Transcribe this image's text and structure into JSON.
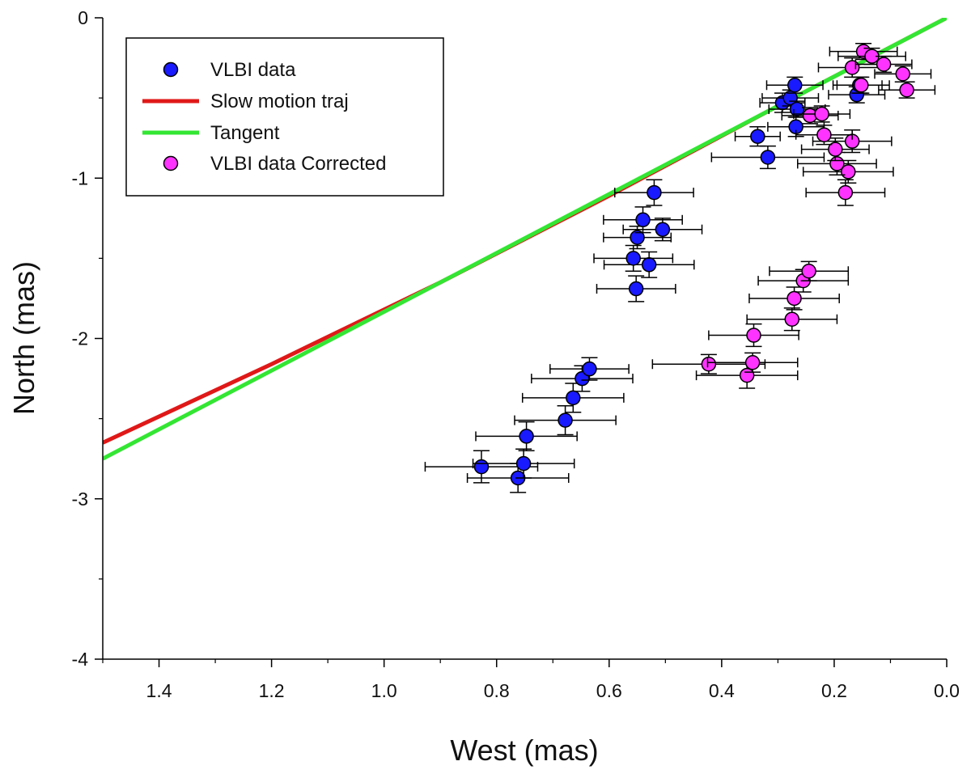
{
  "chart_data": {
    "type": "scatter",
    "xlabel": "West (mas)",
    "ylabel": "North (mas)",
    "x_reversed": true,
    "xlim": [
      0.0,
      1.5
    ],
    "ylim": [
      -4,
      0
    ],
    "x_ticks": [
      "1.4",
      "1.2",
      "1.0",
      "0.8",
      "0.6",
      "0.4",
      "0.2",
      "0.0"
    ],
    "y_ticks": [
      "0",
      "-1",
      "-2",
      "-3",
      "-4"
    ],
    "legend_position": "top-left",
    "series": [
      {
        "name": "VLBI data",
        "kind": "points",
        "color": "#1a1aff",
        "points": [
          {
            "x": 0.827,
            "y": -2.8,
            "xerr": 0.1,
            "yerr": 0.1
          },
          {
            "x": 0.762,
            "y": -2.87,
            "xerr": 0.09,
            "yerr": 0.09
          },
          {
            "x": 0.752,
            "y": -2.78,
            "xerr": 0.09,
            "yerr": 0.09
          },
          {
            "x": 0.747,
            "y": -2.61,
            "xerr": 0.09,
            "yerr": 0.09
          },
          {
            "x": 0.678,
            "y": -2.51,
            "xerr": 0.09,
            "yerr": 0.09
          },
          {
            "x": 0.664,
            "y": -2.37,
            "xerr": 0.09,
            "yerr": 0.09
          },
          {
            "x": 0.648,
            "y": -2.25,
            "xerr": 0.09,
            "yerr": 0.08
          },
          {
            "x": 0.635,
            "y": -2.19,
            "xerr": 0.07,
            "yerr": 0.07
          },
          {
            "x": 0.552,
            "y": -1.69,
            "xerr": 0.07,
            "yerr": 0.08
          },
          {
            "x": 0.529,
            "y": -1.54,
            "xerr": 0.08,
            "yerr": 0.08
          },
          {
            "x": 0.557,
            "y": -1.5,
            "xerr": 0.07,
            "yerr": 0.08
          },
          {
            "x": 0.55,
            "y": -1.37,
            "xerr": 0.06,
            "yerr": 0.07
          },
          {
            "x": 0.505,
            "y": -1.32,
            "xerr": 0.07,
            "yerr": 0.07
          },
          {
            "x": 0.54,
            "y": -1.26,
            "xerr": 0.07,
            "yerr": 0.08
          },
          {
            "x": 0.52,
            "y": -1.09,
            "xerr": 0.07,
            "yerr": 0.08
          },
          {
            "x": 0.318,
            "y": -0.87,
            "xerr": 0.1,
            "yerr": 0.07
          },
          {
            "x": 0.336,
            "y": -0.74,
            "xerr": 0.04,
            "yerr": 0.06
          },
          {
            "x": 0.292,
            "y": -0.53,
            "xerr": 0.04,
            "yerr": 0.06
          },
          {
            "x": 0.278,
            "y": -0.5,
            "xerr": 0.05,
            "yerr": 0.05
          },
          {
            "x": 0.27,
            "y": -0.42,
            "xerr": 0.05,
            "yerr": 0.05
          },
          {
            "x": 0.266,
            "y": -0.57,
            "xerr": 0.05,
            "yerr": 0.05
          },
          {
            "x": 0.268,
            "y": -0.68,
            "xerr": 0.05,
            "yerr": 0.06
          },
          {
            "x": 0.16,
            "y": -0.48,
            "xerr": 0.05,
            "yerr": 0.05
          },
          {
            "x": 0.155,
            "y": -0.42,
            "xerr": 0.04,
            "yerr": 0.05
          }
        ]
      },
      {
        "name": "Slow motion traj",
        "kind": "line",
        "color": "#e01818",
        "points": [
          {
            "x": 0.0,
            "y": 0.0
          },
          {
            "x": 0.3,
            "y": -0.55
          },
          {
            "x": 0.6,
            "y": -1.11
          },
          {
            "x": 0.9,
            "y": -1.65
          },
          {
            "x": 1.2,
            "y": -2.16
          },
          {
            "x": 1.5,
            "y": -2.65
          }
        ]
      },
      {
        "name": "Tangent",
        "kind": "line",
        "color": "#33e633",
        "points": [
          {
            "x": 0.0,
            "y": 0.0
          },
          {
            "x": 1.5,
            "y": -2.75
          }
        ]
      },
      {
        "name": "VLBI data Corrected",
        "kind": "points",
        "color": "#ff33ff",
        "points": [
          {
            "x": 0.423,
            "y": -2.16,
            "xerr": 0.1,
            "yerr": 0.06
          },
          {
            "x": 0.355,
            "y": -2.23,
            "xerr": 0.09,
            "yerr": 0.08
          },
          {
            "x": 0.345,
            "y": -2.15,
            "xerr": 0.08,
            "yerr": 0.06
          },
          {
            "x": 0.343,
            "y": -1.98,
            "xerr": 0.08,
            "yerr": 0.07
          },
          {
            "x": 0.275,
            "y": -1.88,
            "xerr": 0.08,
            "yerr": 0.07
          },
          {
            "x": 0.271,
            "y": -1.75,
            "xerr": 0.08,
            "yerr": 0.07
          },
          {
            "x": 0.255,
            "y": -1.64,
            "xerr": 0.08,
            "yerr": 0.07
          },
          {
            "x": 0.245,
            "y": -1.58,
            "xerr": 0.07,
            "yerr": 0.06
          },
          {
            "x": 0.18,
            "y": -1.09,
            "xerr": 0.07,
            "yerr": 0.08
          },
          {
            "x": 0.175,
            "y": -0.96,
            "xerr": 0.08,
            "yerr": 0.07
          },
          {
            "x": 0.195,
            "y": -0.91,
            "xerr": 0.07,
            "yerr": 0.07
          },
          {
            "x": 0.198,
            "y": -0.82,
            "xerr": 0.06,
            "yerr": 0.07
          },
          {
            "x": 0.168,
            "y": -0.77,
            "xerr": 0.07,
            "yerr": 0.07
          },
          {
            "x": 0.218,
            "y": -0.73,
            "xerr": 0.05,
            "yerr": 0.06
          },
          {
            "x": 0.243,
            "y": -0.61,
            "xerr": 0.05,
            "yerr": 0.05
          },
          {
            "x": 0.222,
            "y": -0.6,
            "xerr": 0.05,
            "yerr": 0.05
          },
          {
            "x": 0.168,
            "y": -0.31,
            "xerr": 0.06,
            "yerr": 0.06
          },
          {
            "x": 0.148,
            "y": -0.21,
            "xerr": 0.06,
            "yerr": 0.05
          },
          {
            "x": 0.133,
            "y": -0.24,
            "xerr": 0.06,
            "yerr": 0.05
          },
          {
            "x": 0.112,
            "y": -0.29,
            "xerr": 0.05,
            "yerr": 0.05
          },
          {
            "x": 0.152,
            "y": -0.42,
            "xerr": 0.05,
            "yerr": 0.05
          },
          {
            "x": 0.078,
            "y": -0.35,
            "xerr": 0.05,
            "yerr": 0.05
          },
          {
            "x": 0.071,
            "y": -0.45,
            "xerr": 0.05,
            "yerr": 0.05
          }
        ]
      }
    ]
  }
}
